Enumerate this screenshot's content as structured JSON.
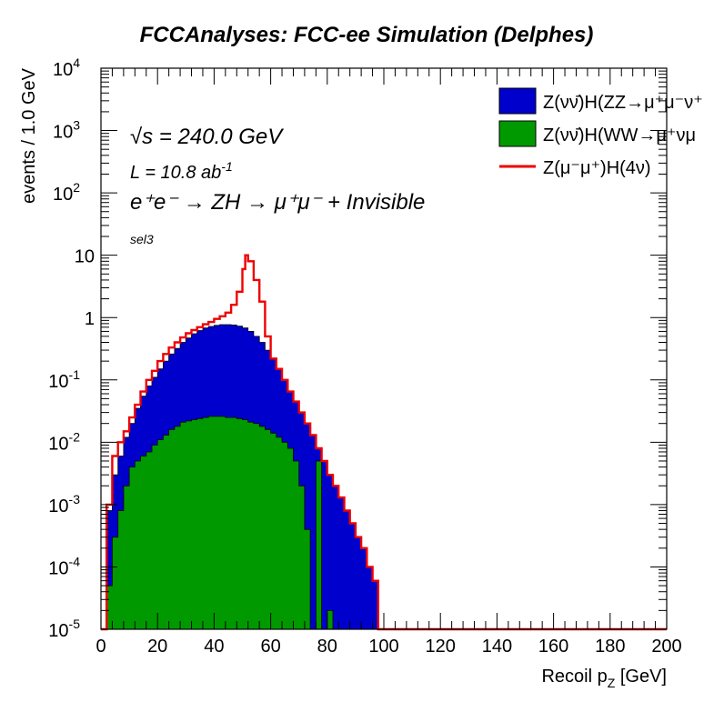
{
  "chart_data": {
    "type": "histogram",
    "title": "FCCAnalyses: FCC-ee Simulation (Delphes)",
    "xlabel_main": "Recoil p",
    "xlabel_sub": "Z",
    "xlabel_unit": " [GeV]",
    "ylabel": "events / 1.0 GeV",
    "xlim": [
      0,
      200
    ],
    "ylim": [
      1e-05,
      10000
    ],
    "y_scale": "log",
    "x_ticks": [
      "0",
      "20",
      "40",
      "60",
      "80",
      "100",
      "120",
      "140",
      "160",
      "180",
      "200"
    ],
    "y_ticks": [
      {
        "base": "10",
        "exp": "-5",
        "value": 1e-05
      },
      {
        "base": "10",
        "exp": "-4",
        "value": 0.0001
      },
      {
        "base": "10",
        "exp": "-3",
        "value": 0.001
      },
      {
        "base": "10",
        "exp": "-2",
        "value": 0.01
      },
      {
        "base": "10",
        "exp": "-1",
        "value": 0.1
      },
      {
        "base": "1",
        "exp": "",
        "value": 1
      },
      {
        "base": "10",
        "exp": "",
        "value": 10
      },
      {
        "base": "10",
        "exp": "2",
        "value": 100
      },
      {
        "base": "10",
        "exp": "3",
        "value": 1000
      },
      {
        "base": "10",
        "exp": "4",
        "value": 10000
      }
    ],
    "annotations": {
      "sqrt_s": "√s = 240.0 GeV",
      "lumi": "L = 10.8 ab",
      "lumi_exp": "-1",
      "process": "e⁺e⁻ → ZH → μ⁺μ⁻ + Invisible",
      "selection": "sel3"
    },
    "legend_position": "top-right",
    "series": [
      {
        "name": "Z(νν̄)H(ZZ→μ⁺μ⁻ν⁺",
        "style": "filled",
        "color": "#0000cc",
        "points": [
          [
            0,
            1e-05
          ],
          [
            2,
            0.0008
          ],
          [
            4,
            0.003
          ],
          [
            6,
            0.006
          ],
          [
            8,
            0.012
          ],
          [
            10,
            0.02
          ],
          [
            12,
            0.035
          ],
          [
            14,
            0.055
          ],
          [
            16,
            0.08
          ],
          [
            18,
            0.11
          ],
          [
            20,
            0.15
          ],
          [
            22,
            0.2
          ],
          [
            24,
            0.26
          ],
          [
            26,
            0.32
          ],
          [
            28,
            0.4
          ],
          [
            30,
            0.47
          ],
          [
            32,
            0.55
          ],
          [
            34,
            0.62
          ],
          [
            36,
            0.68
          ],
          [
            38,
            0.72
          ],
          [
            40,
            0.75
          ],
          [
            42,
            0.77
          ],
          [
            44,
            0.77
          ],
          [
            46,
            0.76
          ],
          [
            48,
            0.73
          ],
          [
            50,
            0.68
          ],
          [
            52,
            0.6
          ],
          [
            54,
            0.5
          ],
          [
            56,
            0.4
          ],
          [
            58,
            0.3
          ],
          [
            60,
            0.22
          ],
          [
            62,
            0.15
          ],
          [
            64,
            0.1
          ],
          [
            66,
            0.065
          ],
          [
            68,
            0.045
          ],
          [
            70,
            0.03
          ],
          [
            72,
            0.02
          ],
          [
            74,
            0.013
          ],
          [
            76,
            0.008
          ],
          [
            78,
            0.005
          ],
          [
            80,
            0.003
          ],
          [
            82,
            0.002
          ],
          [
            84,
            0.0013
          ],
          [
            86,
            0.0008
          ],
          [
            88,
            0.0005
          ],
          [
            90,
            0.0003
          ],
          [
            92,
            0.0002
          ],
          [
            94,
            0.0001
          ],
          [
            96,
            6e-05
          ],
          [
            98,
            1e-05
          ],
          [
            200,
            1e-05
          ]
        ]
      },
      {
        "name": "Z(νν̄)H(WW→μ⁺νμ",
        "style": "filled",
        "color": "#009900",
        "points": [
          [
            0,
            1e-05
          ],
          [
            2,
            5e-05
          ],
          [
            4,
            0.0003
          ],
          [
            6,
            0.0008
          ],
          [
            8,
            0.002
          ],
          [
            10,
            0.004
          ],
          [
            12,
            0.005
          ],
          [
            14,
            0.006
          ],
          [
            16,
            0.007
          ],
          [
            18,
            0.009
          ],
          [
            20,
            0.011
          ],
          [
            22,
            0.013
          ],
          [
            24,
            0.016
          ],
          [
            26,
            0.018
          ],
          [
            28,
            0.021
          ],
          [
            30,
            0.022
          ],
          [
            32,
            0.023
          ],
          [
            34,
            0.024
          ],
          [
            36,
            0.025
          ],
          [
            38,
            0.026
          ],
          [
            40,
            0.026
          ],
          [
            42,
            0.026
          ],
          [
            44,
            0.025
          ],
          [
            46,
            0.025
          ],
          [
            48,
            0.024
          ],
          [
            50,
            0.023
          ],
          [
            52,
            0.021
          ],
          [
            54,
            0.02
          ],
          [
            56,
            0.018
          ],
          [
            58,
            0.016
          ],
          [
            60,
            0.014
          ],
          [
            62,
            0.012
          ],
          [
            64,
            0.01
          ],
          [
            66,
            0.008
          ],
          [
            68,
            0.005
          ],
          [
            70,
            0.002
          ],
          [
            72,
            0.0004
          ],
          [
            74,
            1e-05
          ],
          [
            76,
            0.005
          ],
          [
            78,
            1e-05
          ],
          [
            80,
            2e-05
          ],
          [
            82,
            1e-05
          ],
          [
            200,
            1e-05
          ]
        ]
      },
      {
        "name": "Z(μ⁻μ⁺)H(4ν)",
        "style": "line",
        "color": "#ee0000",
        "points": [
          [
            0,
            1e-05
          ],
          [
            2,
            0.001
          ],
          [
            4,
            0.006
          ],
          [
            6,
            0.01
          ],
          [
            8,
            0.015
          ],
          [
            10,
            0.025
          ],
          [
            12,
            0.04
          ],
          [
            14,
            0.065
          ],
          [
            16,
            0.1
          ],
          [
            18,
            0.14
          ],
          [
            20,
            0.2
          ],
          [
            22,
            0.26
          ],
          [
            24,
            0.33
          ],
          [
            26,
            0.4
          ],
          [
            28,
            0.48
          ],
          [
            30,
            0.56
          ],
          [
            32,
            0.63
          ],
          [
            34,
            0.7
          ],
          [
            36,
            0.78
          ],
          [
            38,
            0.85
          ],
          [
            40,
            0.95
          ],
          [
            42,
            1.05
          ],
          [
            44,
            1.2
          ],
          [
            46,
            1.6
          ],
          [
            48,
            2.6
          ],
          [
            50,
            6
          ],
          [
            51,
            10
          ],
          [
            52,
            8
          ],
          [
            54,
            4
          ],
          [
            56,
            1.8
          ],
          [
            58,
            0.5
          ],
          [
            60,
            0.22
          ],
          [
            62,
            0.15
          ],
          [
            64,
            0.1
          ],
          [
            66,
            0.065
          ],
          [
            68,
            0.045
          ],
          [
            70,
            0.03
          ],
          [
            72,
            0.02
          ],
          [
            74,
            0.013
          ],
          [
            76,
            0.008
          ],
          [
            78,
            0.005
          ],
          [
            80,
            0.003
          ],
          [
            82,
            0.002
          ],
          [
            84,
            0.0013
          ],
          [
            86,
            0.0008
          ],
          [
            88,
            0.0005
          ],
          [
            90,
            0.0003
          ],
          [
            92,
            0.0002
          ],
          [
            94,
            0.0001
          ],
          [
            96,
            6e-05
          ],
          [
            98,
            1e-05
          ],
          [
            200,
            1e-05
          ]
        ]
      }
    ]
  }
}
